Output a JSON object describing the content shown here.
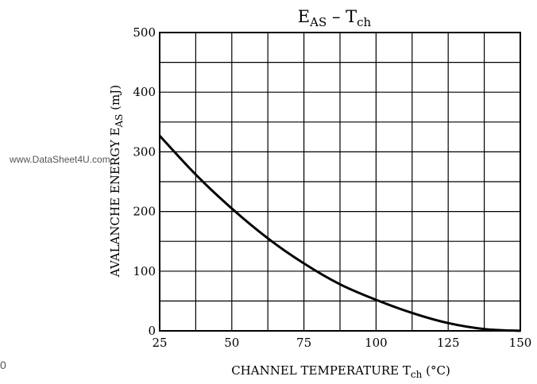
{
  "watermark": "www.DataSheet4U.com",
  "corner_text": "0",
  "chart_data": {
    "type": "line",
    "title": {
      "main": "E",
      "sub": "AS",
      "dash": "–",
      "main2": "T",
      "sub2": "ch"
    },
    "xlabel": {
      "main": "CHANNEL TEMPERATURE",
      "symbol": "T",
      "sub": "ch",
      "unit": "(°C)"
    },
    "ylabel": {
      "main": "AVALANCHE ENERGY",
      "symbol": "E",
      "sub": "AS",
      "unit": "(mJ)"
    },
    "xlim": [
      25,
      150
    ],
    "ylim": [
      0,
      500
    ],
    "xticks": [
      25,
      50,
      75,
      100,
      125,
      150
    ],
    "yticks": [
      0,
      100,
      200,
      300,
      400,
      500
    ],
    "grid": true,
    "series": [
      {
        "x": [
          25,
          37.5,
          50,
          62.5,
          75,
          87.5,
          100,
          112.5,
          125,
          137.5,
          150
        ],
        "values": [
          327,
          262,
          205,
          155,
          113,
          78,
          52,
          30,
          13,
          3,
          0
        ]
      }
    ]
  }
}
